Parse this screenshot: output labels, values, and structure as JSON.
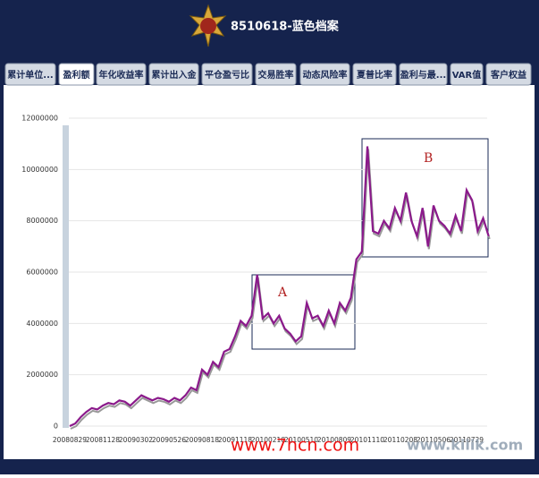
{
  "header": {
    "title": "8510618-蓝色档案"
  },
  "tabs": {
    "items": [
      "累计单位...",
      "盈利额",
      "年化收益率",
      "累计出入金",
      "平仓盈亏比",
      "交易胜率",
      "动态风险率",
      "夏普比率",
      "盈利与最...",
      "VAR值",
      "客户权益"
    ],
    "active": 1
  },
  "chart_data": {
    "type": "line",
    "categories": [
      "20080829",
      null,
      null,
      null,
      null,
      null,
      "20081128",
      null,
      null,
      null,
      null,
      null,
      "20090302",
      null,
      null,
      null,
      null,
      null,
      "20090526",
      null,
      null,
      null,
      null,
      null,
      "20090818",
      null,
      null,
      null,
      null,
      null,
      "20091118",
      null,
      null,
      null,
      null,
      null,
      "20100210",
      null,
      null,
      null,
      null,
      null,
      "20100510",
      null,
      null,
      null,
      null,
      null,
      "20100809",
      null,
      null,
      null,
      null,
      null,
      "20101110",
      null,
      null,
      null,
      null,
      null,
      "20110208",
      null,
      null,
      null,
      null,
      null,
      "20110506",
      null,
      null,
      null,
      null,
      null,
      "20110729",
      null,
      null,
      null,
      null
    ],
    "series": [
      {
        "name": "盈利额",
        "color": "#8b1a8b",
        "values": [
          0,
          100000,
          350000,
          550000,
          700000,
          650000,
          800000,
          900000,
          850000,
          1000000,
          950000,
          800000,
          1000000,
          1200000,
          1100000,
          1000000,
          1100000,
          1050000,
          950000,
          1100000,
          1000000,
          1200000,
          1500000,
          1400000,
          2200000,
          2000000,
          2500000,
          2300000,
          2900000,
          3000000,
          3500000,
          4100000,
          3900000,
          4300000,
          5900000,
          4200000,
          4400000,
          4000000,
          4300000,
          3800000,
          3600000,
          3300000,
          3500000,
          4800000,
          4200000,
          4300000,
          3900000,
          4500000,
          4000000,
          4800000,
          4500000,
          5000000,
          6500000,
          6800000,
          10900000,
          7600000,
          7500000,
          8000000,
          7700000,
          8500000,
          8000000,
          9100000,
          8000000,
          7400000,
          8500000,
          7000000,
          8600000,
          8000000,
          7800000,
          7500000,
          8200000,
          7600000,
          9200000,
          8800000,
          7600000,
          8100000,
          7400000
        ]
      }
    ],
    "ylim": [
      0,
      12000000
    ],
    "yticks": [
      0,
      2000000,
      4000000,
      6000000,
      8000000,
      10000000,
      12000000
    ],
    "grid": true,
    "annotations": [
      "A",
      "B"
    ],
    "watermarks": [
      "www.7hcn.com",
      "www.kiiik.com"
    ]
  }
}
